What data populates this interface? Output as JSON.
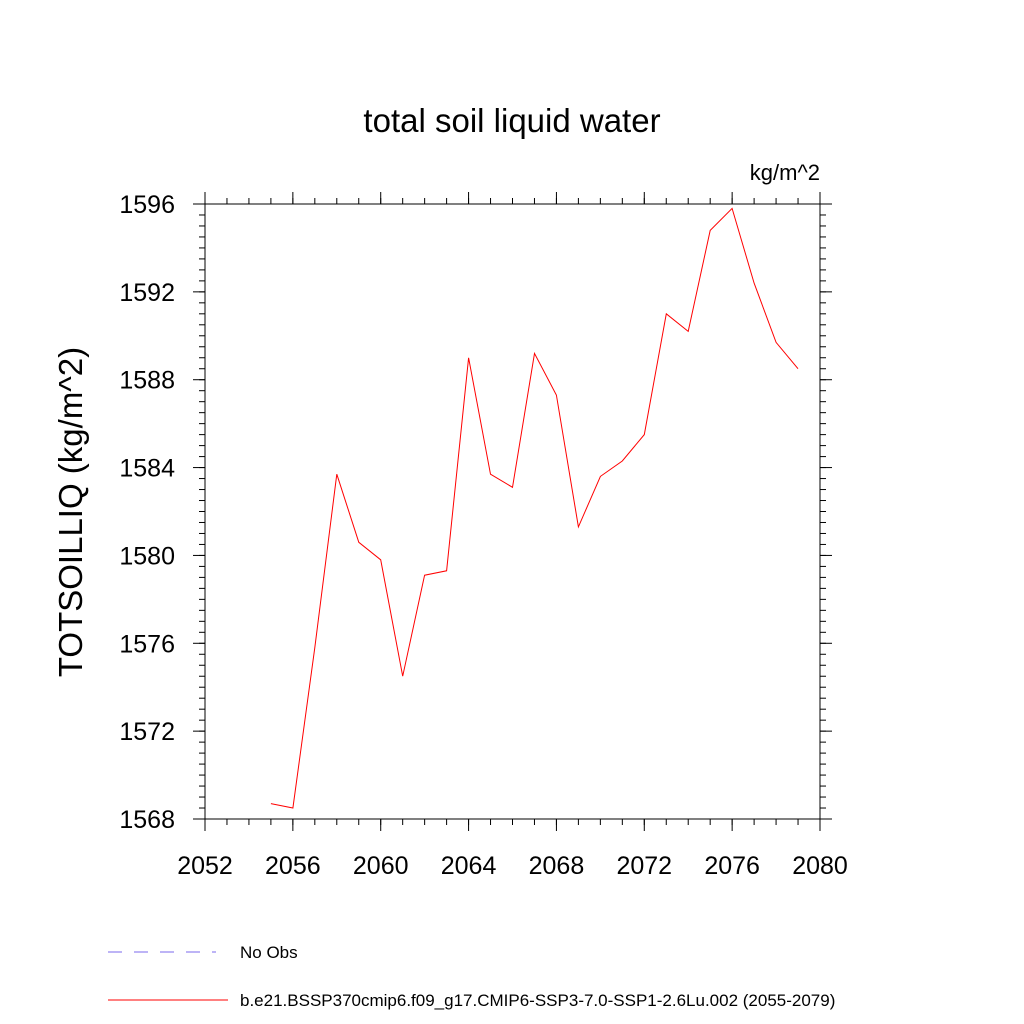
{
  "chart_data": {
    "type": "line",
    "title": "total soil liquid water",
    "units_label": "kg/m^2",
    "ylabel": "TOTSOILLIQ  (kg/m^2)",
    "xlabel": "",
    "xlim": [
      2052,
      2080
    ],
    "ylim": [
      1568,
      1596
    ],
    "x_ticks": [
      2052,
      2056,
      2060,
      2064,
      2068,
      2072,
      2076,
      2080
    ],
    "y_ticks": [
      1568,
      1572,
      1576,
      1580,
      1584,
      1588,
      1592,
      1596
    ],
    "x_minor_step": 1,
    "y_minor_step": 0.5,
    "grid": false,
    "legend_position": "bottom",
    "series": [
      {
        "name": "b.e21.BSSP370cmip6.f09_g17.CMIP6-SSP3-7.0-SSP1-2.6Lu.002 (2055-2079)",
        "color": "#ff0000",
        "style": "solid",
        "x": [
          2055,
          2056,
          2057,
          2058,
          2059,
          2060,
          2061,
          2062,
          2063,
          2064,
          2065,
          2066,
          2067,
          2068,
          2069,
          2070,
          2071,
          2072,
          2073,
          2074,
          2075,
          2076,
          2077,
          2078,
          2079
        ],
        "y": [
          1568.7,
          1568.5,
          1575.8,
          1583.7,
          1580.6,
          1579.8,
          1574.5,
          1579.1,
          1579.3,
          1589.0,
          1583.7,
          1583.1,
          1589.2,
          1587.3,
          1581.3,
          1583.6,
          1584.3,
          1585.5,
          1591.0,
          1590.2,
          1594.8,
          1595.8,
          1592.4,
          1589.7,
          1588.5
        ]
      }
    ],
    "legend": [
      {
        "label": "No Obs",
        "color": "#7b68ee",
        "style": "dashed"
      },
      {
        "label": "b.e21.BSSP370cmip6.f09_g17.CMIP6-SSP3-7.0-SSP1-2.6Lu.002 (2055-2079)",
        "color": "#ff0000",
        "style": "solid"
      }
    ]
  }
}
